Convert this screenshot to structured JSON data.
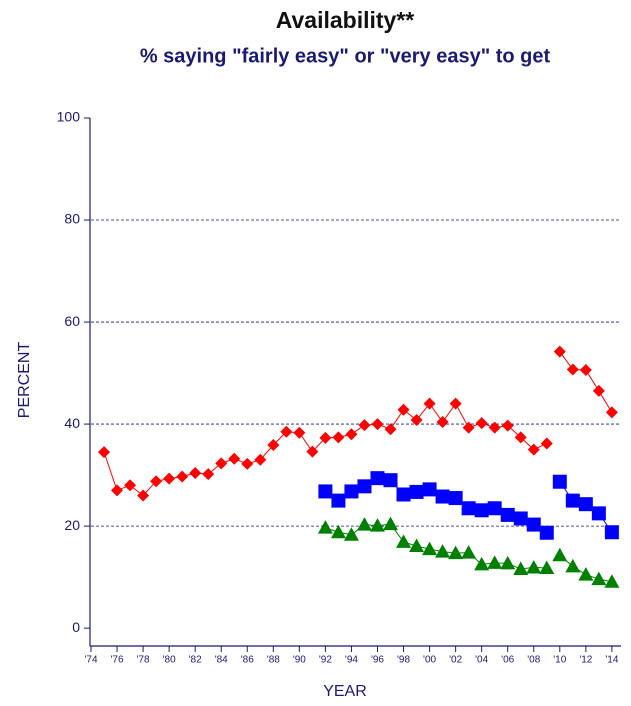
{
  "chart_data": {
    "type": "line",
    "title": "Availability**",
    "subtitle": "% saying \"fairly easy\" or \"very easy\" to get",
    "x_label": "YEAR",
    "y_label": "PERCENT",
    "xlim": [
      1974,
      2014.7
    ],
    "ylim": [
      -3.5,
      100
    ],
    "xticks": [
      {
        "value": 1974,
        "label": "'74"
      },
      {
        "value": 1976,
        "label": "'76"
      },
      {
        "value": 1978,
        "label": "'78"
      },
      {
        "value": 1980,
        "label": "'80"
      },
      {
        "value": 1982,
        "label": "'82"
      },
      {
        "value": 1984,
        "label": "'84"
      },
      {
        "value": 1986,
        "label": "'86"
      },
      {
        "value": 1988,
        "label": "'88"
      },
      {
        "value": 1990,
        "label": "'90"
      },
      {
        "value": 1992,
        "label": "'92"
      },
      {
        "value": 1994,
        "label": "'94"
      },
      {
        "value": 1996,
        "label": "'96"
      },
      {
        "value": 1998,
        "label": "'98"
      },
      {
        "value": 2000,
        "label": "'00"
      },
      {
        "value": 2002,
        "label": "'02"
      },
      {
        "value": 2004,
        "label": "'04"
      },
      {
        "value": 2006,
        "label": "'06"
      },
      {
        "value": 2008,
        "label": "'08"
      },
      {
        "value": 2010,
        "label": "'10"
      },
      {
        "value": 2012,
        "label": "'12"
      },
      {
        "value": 2014,
        "label": "'14"
      }
    ],
    "yticks": [
      0,
      20,
      40,
      60,
      80,
      100
    ],
    "grid": true,
    "series": [
      {
        "color": "#ff0000",
        "marker": "diamond",
        "x": [
          1975,
          1976,
          1977,
          1978,
          1979,
          1980,
          1981,
          1982,
          1983,
          1984,
          1985,
          1986,
          1987,
          1988,
          1989,
          1990,
          1991,
          1992,
          1993,
          1994,
          1995,
          1996,
          1997,
          1998,
          1999,
          2000,
          2001,
          2002,
          2003,
          2004,
          2005,
          2006,
          2007,
          2008,
          2009
        ],
        "values": [
          34.5,
          27,
          28,
          26,
          28.8,
          29.3,
          29.7,
          30.4,
          30.2,
          32.3,
          33.2,
          32.2,
          33,
          35.9,
          38.5,
          38.3,
          34.6,
          37.3,
          37.4,
          38,
          39.8,
          40,
          39,
          42.8,
          40.8,
          44,
          40.4,
          44,
          39.3,
          40.2,
          39.3,
          39.7,
          37.4,
          35,
          36.2
        ]
      },
      {
        "color": "#ff0000",
        "marker": "diamond",
        "x": [
          2010,
          2011,
          2012,
          2013,
          2014
        ],
        "values": [
          54.2,
          50.7,
          50.6,
          46.5,
          42.3
        ]
      },
      {
        "color": "#0000ff",
        "marker": "square",
        "x": [
          1992,
          1993,
          1994,
          1995,
          1996,
          1997,
          1998,
          1999,
          2000,
          2001,
          2002,
          2003,
          2004,
          2005,
          2006,
          2007,
          2008,
          2009
        ],
        "values": [
          26.8,
          25,
          26.8,
          27.8,
          29.4,
          29,
          26.2,
          26.7,
          27.2,
          25.8,
          25.5,
          23.5,
          23.1,
          23.5,
          22.2,
          21.5,
          20.3,
          18.7
        ]
      },
      {
        "color": "#0000ff",
        "marker": "square",
        "x": [
          2010,
          2011,
          2012,
          2013,
          2014
        ],
        "values": [
          28.7,
          25,
          24.3,
          22.5,
          18.8
        ]
      },
      {
        "color": "#008000",
        "marker": "triangle",
        "x": [
          1992,
          1993,
          1994,
          1995,
          1996,
          1997,
          1998,
          1999,
          2000,
          2001,
          2002,
          2003,
          2004,
          2005,
          2006,
          2007,
          2008,
          2009
        ],
        "values": [
          19.7,
          18.8,
          18.3,
          20.3,
          20.1,
          20.4,
          16.9,
          16.1,
          15.5,
          15,
          14.7,
          14.8,
          12.5,
          12.8,
          12.7,
          11.6,
          11.9,
          11.8
        ]
      },
      {
        "color": "#008000",
        "marker": "triangle",
        "x": [
          2010,
          2011,
          2012,
          2013,
          2014
        ],
        "values": [
          14.3,
          12.1,
          10.5,
          9.6,
          9.1
        ]
      }
    ]
  }
}
